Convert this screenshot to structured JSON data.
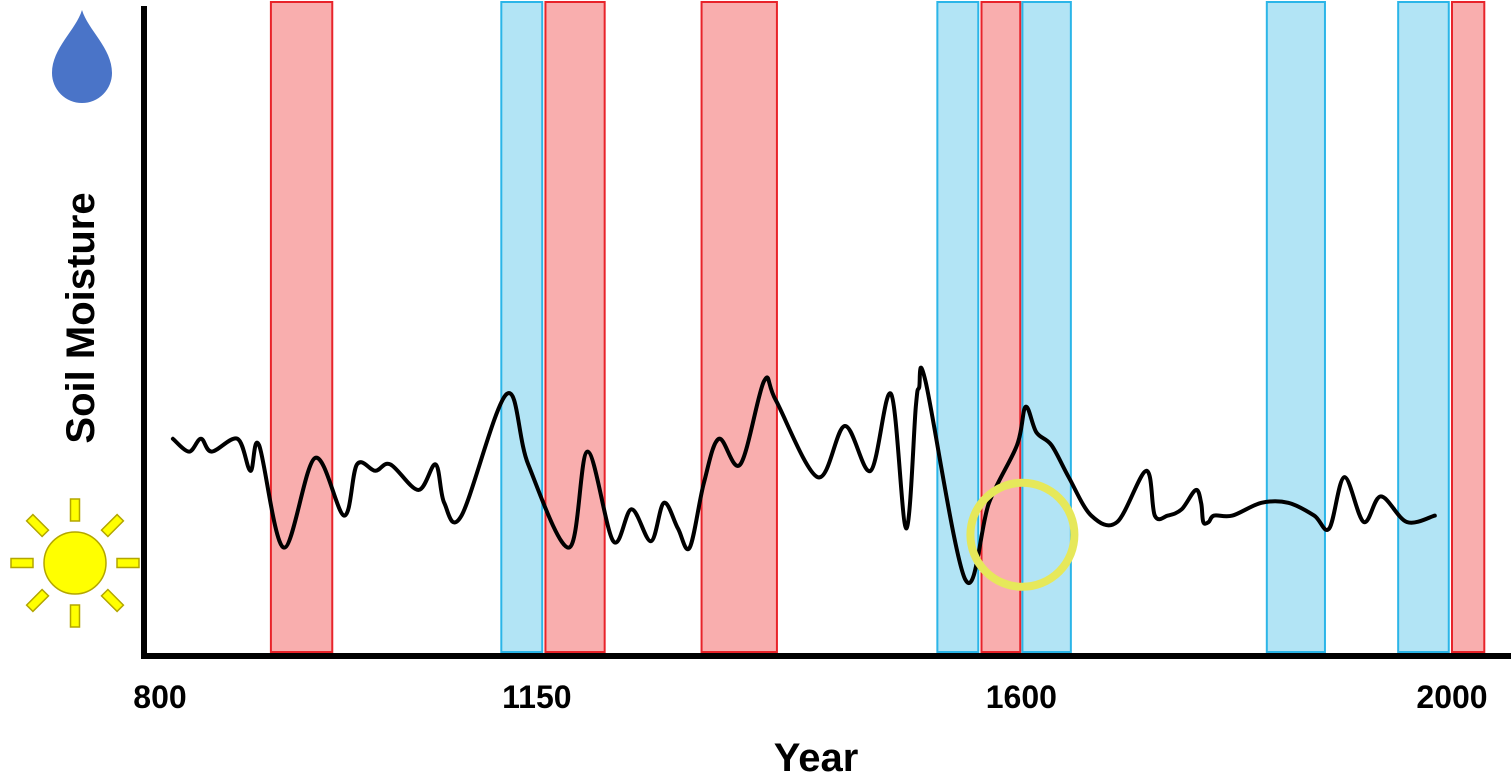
{
  "chart_data": {
    "type": "line",
    "title": "",
    "xlabel": "Year",
    "ylabel": "Soil Moisture",
    "xlim": [
      800,
      2000
    ],
    "x_ticks": [
      {
        "value": 800,
        "label": "800"
      },
      {
        "value": 1150,
        "label": "1150"
      },
      {
        "value": 1600,
        "label": "1600"
      },
      {
        "value": 2000,
        "label": "2000"
      }
    ],
    "ylim": [
      0,
      100
    ],
    "y_axis_icons": {
      "top": "water-drop-icon",
      "bottom": "sun-icon"
    },
    "grid": false,
    "legend": "none",
    "colors": {
      "wet_band_fill": "#b2e4f5",
      "wet_band_stroke": "#2bb5e8",
      "dry_band_fill": "#f9aeae",
      "dry_band_stroke": "#e8232a",
      "line": "#000000",
      "highlight_circle": "#e6e85a",
      "drop": "#4a74c8",
      "sun_fill": "#ffff00",
      "sun_stroke": "#b3a600"
    },
    "bands": [
      {
        "type": "dry",
        "start": 903,
        "end": 960
      },
      {
        "type": "wet",
        "start": 1117,
        "end": 1155
      },
      {
        "type": "dry",
        "start": 1158,
        "end": 1213
      },
      {
        "type": "dry",
        "start": 1303,
        "end": 1373
      },
      {
        "type": "wet",
        "start": 1522,
        "end": 1560
      },
      {
        "type": "dry",
        "start": 1563,
        "end": 1599
      },
      {
        "type": "wet",
        "start": 1601,
        "end": 1646
      },
      {
        "type": "wet",
        "start": 1828,
        "end": 1882
      },
      {
        "type": "wet",
        "start": 1950,
        "end": 1997
      },
      {
        "type": "dry",
        "start": 2000,
        "end": 2030
      }
    ],
    "series": [
      {
        "x": [
          812,
          827,
          838,
          848,
          872,
          884,
          892,
          915,
          944,
          971,
          983,
          1000,
          1014,
          1040,
          1056,
          1064,
          1080,
          1122,
          1142,
          1180,
          1197,
          1221,
          1238,
          1256,
          1268,
          1281,
          1292,
          1305,
          1319,
          1339,
          1361,
          1372,
          1411,
          1436,
          1460,
          1479,
          1493,
          1502,
          1505,
          1511,
          1548,
          1570,
          1596,
          1604,
          1614,
          1628,
          1644,
          1665,
          1689,
          1716,
          1724,
          1736,
          1749,
          1762,
          1767,
          1769,
          1774,
          1779,
          1796,
          1823,
          1848,
          1872,
          1886,
          1900,
          1918,
          1934,
          1958,
          1984
        ],
        "y": [
          33,
          31,
          33,
          31,
          33,
          28,
          32,
          16,
          30,
          21,
          29,
          28,
          29,
          25,
          29,
          23,
          21,
          40,
          29,
          16,
          31,
          17,
          22,
          17,
          23,
          19,
          16,
          26,
          33,
          29,
          42,
          39,
          27,
          35,
          28,
          40,
          19,
          38,
          41,
          42,
          11,
          23,
          32,
          38,
          34,
          32,
          27,
          21,
          20,
          28,
          21,
          21,
          22,
          25,
          23,
          20,
          20,
          21,
          21,
          23,
          23,
          21,
          19,
          27,
          20,
          24,
          20,
          21
        ]
      }
    ],
    "highlight_circle": {
      "x": 1601,
      "y": 18
    }
  }
}
